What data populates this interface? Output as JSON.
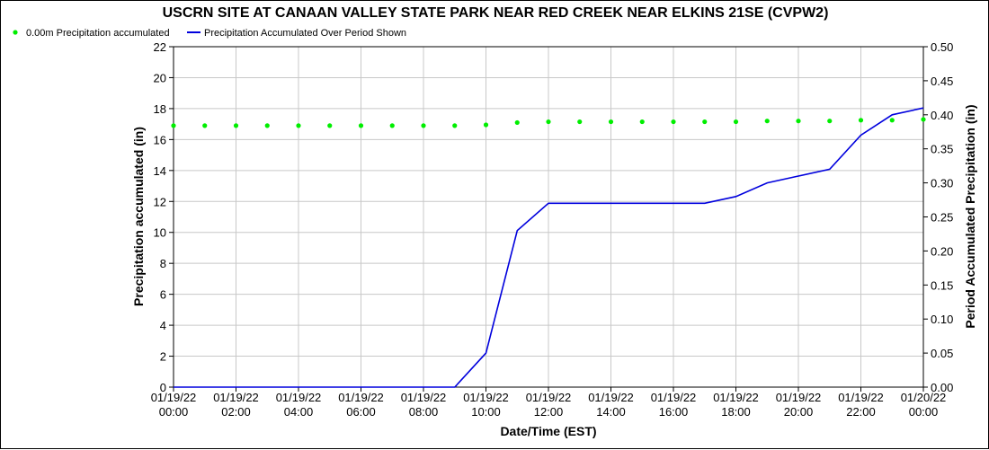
{
  "chart_data": {
    "type": "line",
    "title": "USCRN SITE AT CANAAN VALLEY STATE PARK NEAR RED CREEK NEAR ELKINS 21SE (CVPW2)",
    "xlabel": "Date/Time (EST)",
    "ylabel_left": "Precipitation accumulated (in)",
    "ylabel_right": "Period Accumulated Precipitation (in)",
    "ylim_left": [
      0,
      22
    ],
    "ylim_right": [
      0,
      0.5
    ],
    "yticks_left": [
      "0",
      "2",
      "4",
      "6",
      "8",
      "10",
      "12",
      "14",
      "16",
      "18",
      "20",
      "22"
    ],
    "yticks_right": [
      "0.00",
      "0.05",
      "0.10",
      "0.15",
      "0.20",
      "0.25",
      "0.30",
      "0.35",
      "0.40",
      "0.45",
      "0.50"
    ],
    "xticks": [
      {
        "date": "01/19/22",
        "time": "00:00"
      },
      {
        "date": "01/19/22",
        "time": "02:00"
      },
      {
        "date": "01/19/22",
        "time": "04:00"
      },
      {
        "date": "01/19/22",
        "time": "06:00"
      },
      {
        "date": "01/19/22",
        "time": "08:00"
      },
      {
        "date": "01/19/22",
        "time": "10:00"
      },
      {
        "date": "01/19/22",
        "time": "12:00"
      },
      {
        "date": "01/19/22",
        "time": "14:00"
      },
      {
        "date": "01/19/22",
        "time": "16:00"
      },
      {
        "date": "01/19/22",
        "time": "18:00"
      },
      {
        "date": "01/19/22",
        "time": "20:00"
      },
      {
        "date": "01/19/22",
        "time": "22:00"
      },
      {
        "date": "01/20/22",
        "time": "00:00"
      }
    ],
    "grid": true,
    "legend_position": "top-left",
    "series": [
      {
        "name": "0.00m Precipitation accumulated",
        "type": "scatter",
        "axis": "left",
        "color": "#00ee00",
        "x": [
          "01/19/22 00:00",
          "01/19/22 01:00",
          "01/19/22 02:00",
          "01/19/22 03:00",
          "01/19/22 04:00",
          "01/19/22 05:00",
          "01/19/22 06:00",
          "01/19/22 07:00",
          "01/19/22 08:00",
          "01/19/22 09:00",
          "01/19/22 10:00",
          "01/19/22 11:00",
          "01/19/22 12:00",
          "01/19/22 13:00",
          "01/19/22 14:00",
          "01/19/22 15:00",
          "01/19/22 16:00",
          "01/19/22 17:00",
          "01/19/22 18:00",
          "01/19/22 19:00",
          "01/19/22 20:00",
          "01/19/22 21:00",
          "01/19/22 22:00",
          "01/19/22 23:00",
          "01/20/22 00:00"
        ],
        "values": [
          16.9,
          16.9,
          16.9,
          16.9,
          16.9,
          16.9,
          16.9,
          16.9,
          16.9,
          16.9,
          16.95,
          17.1,
          17.15,
          17.15,
          17.15,
          17.15,
          17.15,
          17.15,
          17.15,
          17.2,
          17.2,
          17.2,
          17.25,
          17.25,
          17.3
        ]
      },
      {
        "name": "Precipitation Accumulated Over Period Shown",
        "type": "line",
        "axis": "right",
        "color": "#0000dd",
        "x": [
          "01/19/22 00:00",
          "01/19/22 01:00",
          "01/19/22 02:00",
          "01/19/22 03:00",
          "01/19/22 04:00",
          "01/19/22 05:00",
          "01/19/22 06:00",
          "01/19/22 07:00",
          "01/19/22 08:00",
          "01/19/22 09:00",
          "01/19/22 10:00",
          "01/19/22 11:00",
          "01/19/22 12:00",
          "01/19/22 13:00",
          "01/19/22 14:00",
          "01/19/22 15:00",
          "01/19/22 16:00",
          "01/19/22 17:00",
          "01/19/22 18:00",
          "01/19/22 19:00",
          "01/19/22 20:00",
          "01/19/22 21:00",
          "01/19/22 22:00",
          "01/19/22 23:00",
          "01/20/22 00:00"
        ],
        "values": [
          0,
          0,
          0,
          0,
          0,
          0,
          0,
          0,
          0,
          0,
          0.05,
          0.23,
          0.27,
          0.27,
          0.27,
          0.27,
          0.27,
          0.27,
          0.28,
          0.3,
          0.31,
          0.32,
          0.37,
          0.4,
          0.41
        ]
      }
    ]
  }
}
